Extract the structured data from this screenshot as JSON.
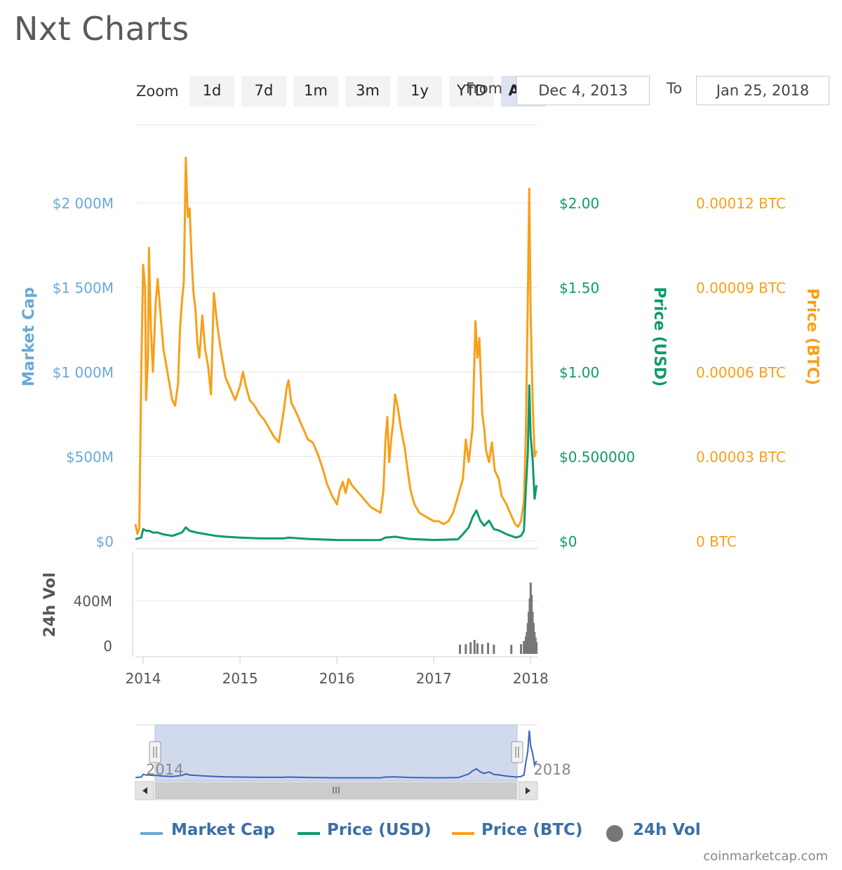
{
  "title": "Nxt Charts",
  "zoom": {
    "label": "Zoom",
    "buttons": [
      "1d",
      "7d",
      "1m",
      "3m",
      "1y",
      "YTD",
      "ALL"
    ],
    "active": "ALL"
  },
  "range": {
    "from_label": "From",
    "from_value": "Dec 4, 2013",
    "to_label": "To",
    "to_value": "Jan 25, 2018"
  },
  "colors": {
    "market_cap": "#6aa9d4",
    "price_usd": "#0f9a6e",
    "price_btc": "#f7a01a",
    "volume": "#777777",
    "legend_text": "#3b6fa6"
  },
  "legend": [
    {
      "label": "Market Cap",
      "kind": "line",
      "color": "#6aa9d4"
    },
    {
      "label": "Price (USD)",
      "kind": "line",
      "color": "#0f9a6e"
    },
    {
      "label": "Price (BTC)",
      "kind": "line",
      "color": "#f7a01a"
    },
    {
      "label": "24h Vol",
      "kind": "dot",
      "color": "#777777"
    }
  ],
  "credits": "coinmarketcap.com",
  "chart_data": {
    "type": "line",
    "x_axis": {
      "tick_labels": [
        "2014",
        "2015",
        "2016",
        "2017",
        "2018"
      ],
      "tick_values": [
        2014,
        2015,
        2016,
        2017,
        2018
      ],
      "range": [
        2013.92,
        2018.07
      ]
    },
    "y_axes": [
      {
        "name": "Market Cap",
        "label": "Market Cap",
        "side": "left",
        "ticks": [
          0,
          500,
          1000,
          1500,
          2000
        ],
        "tick_labels": [
          "$0",
          "$500M",
          "$1 000M",
          "$1 500M",
          "$2 000M"
        ],
        "unit": "M USD"
      },
      {
        "name": "Price (USD)",
        "label": "Price (USD)",
        "side": "right",
        "ticks": [
          0,
          0.5,
          1,
          1.5,
          2
        ],
        "tick_labels": [
          "$0",
          "$0.500000",
          "$1.00",
          "$1.50",
          "$2.00"
        ],
        "unit": "USD"
      },
      {
        "name": "Price (BTC)",
        "label": "Price (BTC)",
        "side": "right",
        "ticks": [
          0,
          3e-05,
          6e-05,
          9e-05,
          0.00012
        ],
        "tick_labels": [
          "0 BTC",
          "0.00003 BTC",
          "0.00006 BTC",
          "0.00009 BTC",
          "0.00012 BTC"
        ],
        "unit": "BTC"
      },
      {
        "name": "24h Vol",
        "label": "24h Vol",
        "side": "left",
        "ticks": [
          0,
          400
        ],
        "tick_labels": [
          "0",
          "400M"
        ],
        "unit": "M USD"
      }
    ],
    "series": [
      {
        "name": "Price (BTC)",
        "axis": "Price (BTC)",
        "points": [
          [
            2013.92,
            6e-06
          ],
          [
            2013.94,
            2.5e-06
          ],
          [
            2013.96,
            4.5e-06
          ],
          [
            2013.98,
            6e-05
          ],
          [
            2014.0,
            9.8e-05
          ],
          [
            2014.02,
            9e-05
          ],
          [
            2014.03,
            5e-05
          ],
          [
            2014.05,
            6.5e-05
          ],
          [
            2014.06,
            0.000104
          ],
          [
            2014.08,
            7.5e-05
          ],
          [
            2014.1,
            6e-05
          ],
          [
            2014.13,
            8.5e-05
          ],
          [
            2014.15,
            9.3e-05
          ],
          [
            2014.18,
            8e-05
          ],
          [
            2014.21,
            6.8e-05
          ],
          [
            2014.24,
            6.2e-05
          ],
          [
            2014.27,
            5.6e-05
          ],
          [
            2014.3,
            5e-05
          ],
          [
            2014.33,
            4.8e-05
          ],
          [
            2014.36,
            5.6e-05
          ],
          [
            2014.38,
            7.5e-05
          ],
          [
            2014.4,
            8.5e-05
          ],
          [
            2014.42,
            9.2e-05
          ],
          [
            2014.44,
            0.000136
          ],
          [
            2014.46,
            0.000115
          ],
          [
            2014.48,
            0.000118
          ],
          [
            2014.5,
            0.0001
          ],
          [
            2014.52,
            8.8e-05
          ],
          [
            2014.54,
            8.2e-05
          ],
          [
            2014.56,
            7e-05
          ],
          [
            2014.58,
            6.5e-05
          ],
          [
            2014.61,
            8e-05
          ],
          [
            2014.64,
            6.8e-05
          ],
          [
            2014.67,
            6.2e-05
          ],
          [
            2014.7,
            5.2e-05
          ],
          [
            2014.73,
            8.8e-05
          ],
          [
            2014.76,
            7.8e-05
          ],
          [
            2014.8,
            6.8e-05
          ],
          [
            2014.85,
            5.8e-05
          ],
          [
            2014.9,
            5.4e-05
          ],
          [
            2014.95,
            5e-05
          ],
          [
            2015.0,
            5.5e-05
          ],
          [
            2015.03,
            6e-05
          ],
          [
            2015.06,
            5.5e-05
          ],
          [
            2015.1,
            5e-05
          ],
          [
            2015.15,
            4.8e-05
          ],
          [
            2015.2,
            4.5e-05
          ],
          [
            2015.25,
            4.3e-05
          ],
          [
            2015.3,
            4e-05
          ],
          [
            2015.35,
            3.7e-05
          ],
          [
            2015.4,
            3.5e-05
          ],
          [
            2015.45,
            4.6e-05
          ],
          [
            2015.48,
            5.4e-05
          ],
          [
            2015.5,
            5.7e-05
          ],
          [
            2015.53,
            4.9e-05
          ],
          [
            2015.56,
            4.7e-05
          ],
          [
            2015.6,
            4.4e-05
          ],
          [
            2015.65,
            4e-05
          ],
          [
            2015.7,
            3.6e-05
          ],
          [
            2015.75,
            3.5e-05
          ],
          [
            2015.8,
            3.1e-05
          ],
          [
            2015.85,
            2.6e-05
          ],
          [
            2015.9,
            2e-05
          ],
          [
            2015.95,
            1.6e-05
          ],
          [
            2016.0,
            1.3e-05
          ],
          [
            2016.03,
            1.8e-05
          ],
          [
            2016.06,
            2.1e-05
          ],
          [
            2016.09,
            1.7e-05
          ],
          [
            2016.12,
            2.2e-05
          ],
          [
            2016.15,
            2e-05
          ],
          [
            2016.2,
            1.8e-05
          ],
          [
            2016.25,
            1.6e-05
          ],
          [
            2016.3,
            1.4e-05
          ],
          [
            2016.35,
            1.2e-05
          ],
          [
            2016.4,
            1.1e-05
          ],
          [
            2016.45,
            1e-05
          ],
          [
            2016.48,
            1.8e-05
          ],
          [
            2016.5,
            3.5e-05
          ],
          [
            2016.52,
            4.4e-05
          ],
          [
            2016.54,
            2.8e-05
          ],
          [
            2016.56,
            3.6e-05
          ],
          [
            2016.58,
            4.2e-05
          ],
          [
            2016.6,
            5.2e-05
          ],
          [
            2016.63,
            4.7e-05
          ],
          [
            2016.66,
            4e-05
          ],
          [
            2016.7,
            3.3e-05
          ],
          [
            2016.73,
            2.5e-05
          ],
          [
            2016.76,
            1.8e-05
          ],
          [
            2016.8,
            1.3e-05
          ],
          [
            2016.85,
            1e-05
          ],
          [
            2016.9,
            9e-06
          ],
          [
            2016.95,
            8e-06
          ],
          [
            2017.0,
            7e-06
          ],
          [
            2017.05,
            7e-06
          ],
          [
            2017.1,
            6e-06
          ],
          [
            2017.15,
            7e-06
          ],
          [
            2017.2,
            1e-05
          ],
          [
            2017.25,
            1.6e-05
          ],
          [
            2017.3,
            2.2e-05
          ],
          [
            2017.33,
            3.6e-05
          ],
          [
            2017.36,
            2.8e-05
          ],
          [
            2017.4,
            4e-05
          ],
          [
            2017.43,
            7.8e-05
          ],
          [
            2017.45,
            6.5e-05
          ],
          [
            2017.47,
            7.2e-05
          ],
          [
            2017.5,
            4.5e-05
          ],
          [
            2017.52,
            4e-05
          ],
          [
            2017.54,
            3.2e-05
          ],
          [
            2017.57,
            2.8e-05
          ],
          [
            2017.6,
            3.5e-05
          ],
          [
            2017.63,
            2.5e-05
          ],
          [
            2017.67,
            2.2e-05
          ],
          [
            2017.7,
            1.6e-05
          ],
          [
            2017.75,
            1.3e-05
          ],
          [
            2017.8,
            9e-06
          ],
          [
            2017.84,
            6e-06
          ],
          [
            2017.87,
            5e-06
          ],
          [
            2017.9,
            7e-06
          ],
          [
            2017.93,
            1.4e-05
          ],
          [
            2017.95,
            3.8e-05
          ],
          [
            2017.97,
            8.5e-05
          ],
          [
            2017.985,
            0.000125
          ],
          [
            2018.0,
            8e-05
          ],
          [
            2018.02,
            5e-05
          ],
          [
            2018.04,
            3e-05
          ],
          [
            2018.06,
            3.2e-05
          ]
        ]
      },
      {
        "name": "Price (USD)",
        "axis": "Price (USD)",
        "points": [
          [
            2013.92,
            0.01
          ],
          [
            2013.98,
            0.02
          ],
          [
            2014.0,
            0.07
          ],
          [
            2014.03,
            0.06
          ],
          [
            2014.06,
            0.06
          ],
          [
            2014.1,
            0.05
          ],
          [
            2014.15,
            0.05
          ],
          [
            2014.2,
            0.04
          ],
          [
            2014.3,
            0.03
          ],
          [
            2014.4,
            0.05
          ],
          [
            2014.44,
            0.08
          ],
          [
            2014.48,
            0.06
          ],
          [
            2014.55,
            0.05
          ],
          [
            2014.65,
            0.04
          ],
          [
            2014.75,
            0.03
          ],
          [
            2014.85,
            0.025
          ],
          [
            2015.0,
            0.02
          ],
          [
            2015.2,
            0.015
          ],
          [
            2015.45,
            0.015
          ],
          [
            2015.5,
            0.02
          ],
          [
            2015.7,
            0.012
          ],
          [
            2016.0,
            0.006
          ],
          [
            2016.3,
            0.005
          ],
          [
            2016.45,
            0.006
          ],
          [
            2016.5,
            0.02
          ],
          [
            2016.6,
            0.025
          ],
          [
            2016.75,
            0.012
          ],
          [
            2017.0,
            0.006
          ],
          [
            2017.25,
            0.01
          ],
          [
            2017.3,
            0.04
          ],
          [
            2017.36,
            0.08
          ],
          [
            2017.4,
            0.14
          ],
          [
            2017.44,
            0.18
          ],
          [
            2017.48,
            0.12
          ],
          [
            2017.52,
            0.09
          ],
          [
            2017.57,
            0.12
          ],
          [
            2017.62,
            0.07
          ],
          [
            2017.68,
            0.06
          ],
          [
            2017.75,
            0.04
          ],
          [
            2017.85,
            0.02
          ],
          [
            2017.9,
            0.03
          ],
          [
            2017.93,
            0.06
          ],
          [
            2017.95,
            0.3
          ],
          [
            2017.97,
            0.52
          ],
          [
            2017.985,
            0.92
          ],
          [
            2018.0,
            0.62
          ],
          [
            2018.02,
            0.48
          ],
          [
            2018.04,
            0.25
          ],
          [
            2018.06,
            0.33
          ]
        ]
      },
      {
        "name": "24h Vol",
        "axis": "24h Vol",
        "type": "bar",
        "points": [
          [
            2017.27,
            8
          ],
          [
            2017.33,
            12
          ],
          [
            2017.38,
            30
          ],
          [
            2017.42,
            50
          ],
          [
            2017.45,
            20
          ],
          [
            2017.5,
            12
          ],
          [
            2017.56,
            25
          ],
          [
            2017.62,
            8
          ],
          [
            2017.8,
            6
          ],
          [
            2017.9,
            12
          ],
          [
            2017.93,
            40
          ],
          [
            2017.95,
            80
          ],
          [
            2017.96,
            120
          ],
          [
            2017.97,
            200
          ],
          [
            2017.98,
            300
          ],
          [
            2017.99,
            420
          ],
          [
            2018.0,
            560
          ],
          [
            2018.01,
            450
          ],
          [
            2018.02,
            300
          ],
          [
            2018.03,
            200
          ],
          [
            2018.04,
            120
          ],
          [
            2018.05,
            70
          ],
          [
            2018.06,
            30
          ]
        ]
      }
    ],
    "navigator": {
      "tick_labels": [
        "2014",
        "2018"
      ],
      "tick_values": [
        2014,
        2018
      ]
    }
  }
}
